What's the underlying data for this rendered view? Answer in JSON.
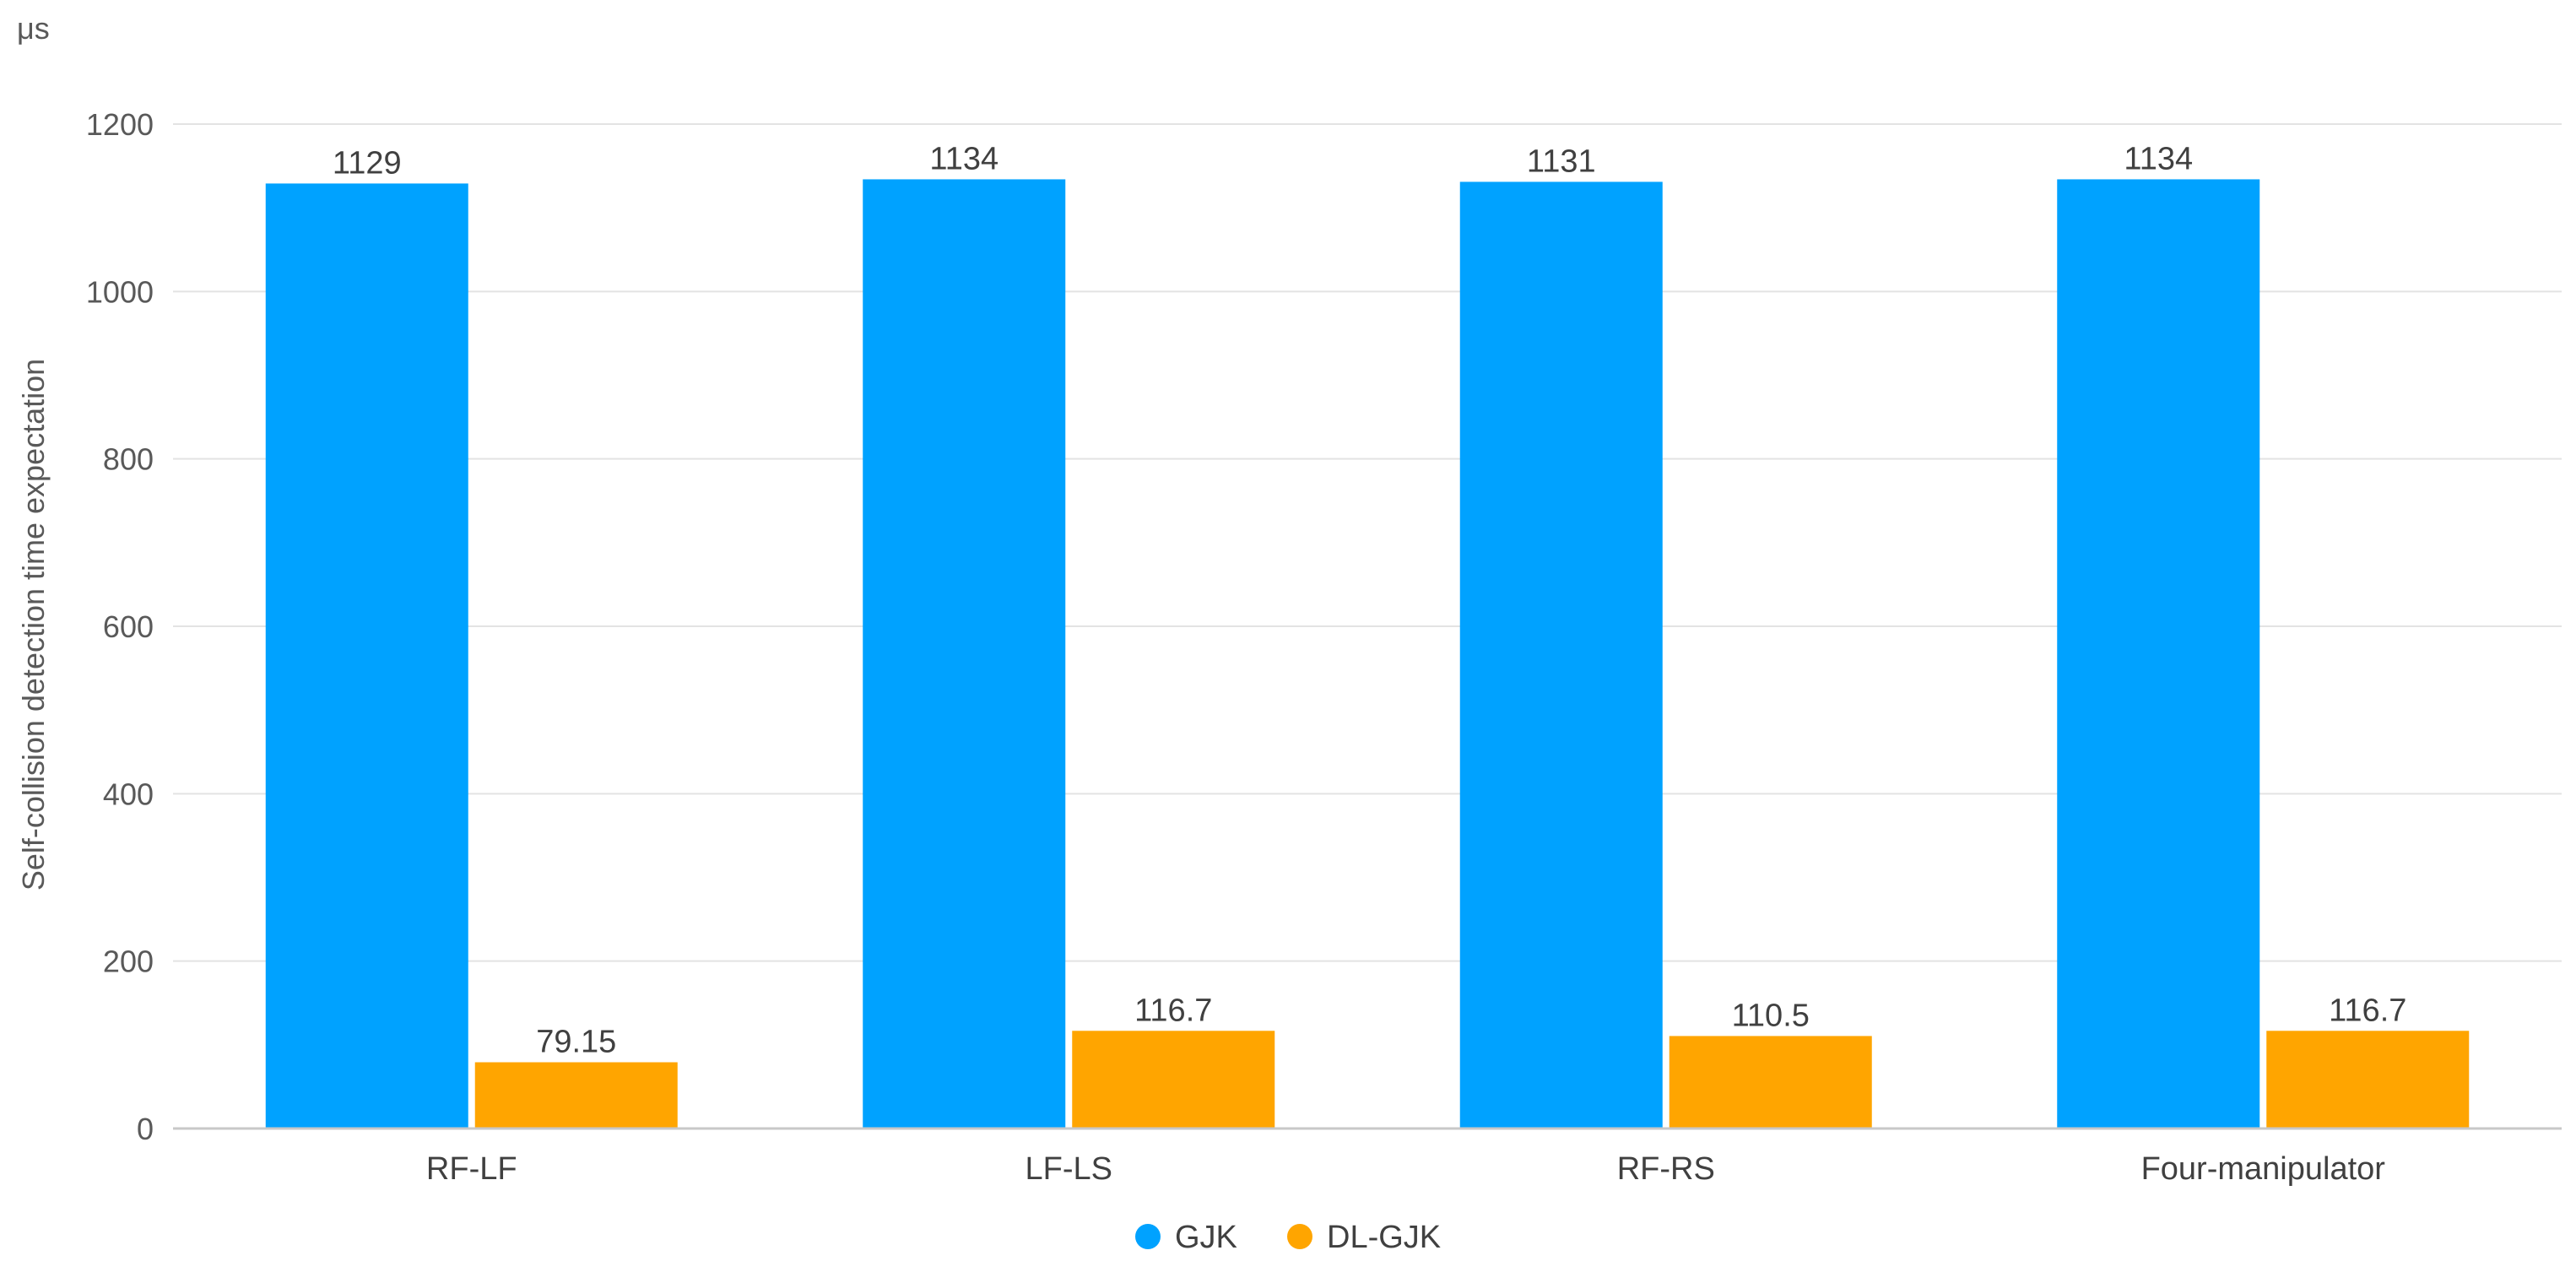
{
  "chart_data": {
    "type": "bar",
    "unit_label": "μs",
    "ylabel": "Self-collision detection time expectation",
    "xlabel": "",
    "title": "",
    "categories": [
      "RF-LF",
      "LF-LS",
      "RF-RS",
      "Four-manipulator"
    ],
    "series": [
      {
        "name": "GJK",
        "color": "#00A2FF",
        "values": [
          1129,
          1134,
          1131,
          1134
        ],
        "labels": [
          "1129",
          "1134",
          "1131",
          "1134"
        ]
      },
      {
        "name": "DL-GJK",
        "color": "#FFA500",
        "values": [
          79.15,
          116.7,
          110.5,
          116.7
        ],
        "labels": [
          "79.15",
          "116.7",
          "110.5",
          "116.7"
        ]
      }
    ],
    "ylim": [
      0,
      1200
    ],
    "yticks": [
      0,
      200,
      400,
      600,
      800,
      1000,
      1200
    ],
    "grid": true,
    "legend_position": "bottom"
  }
}
